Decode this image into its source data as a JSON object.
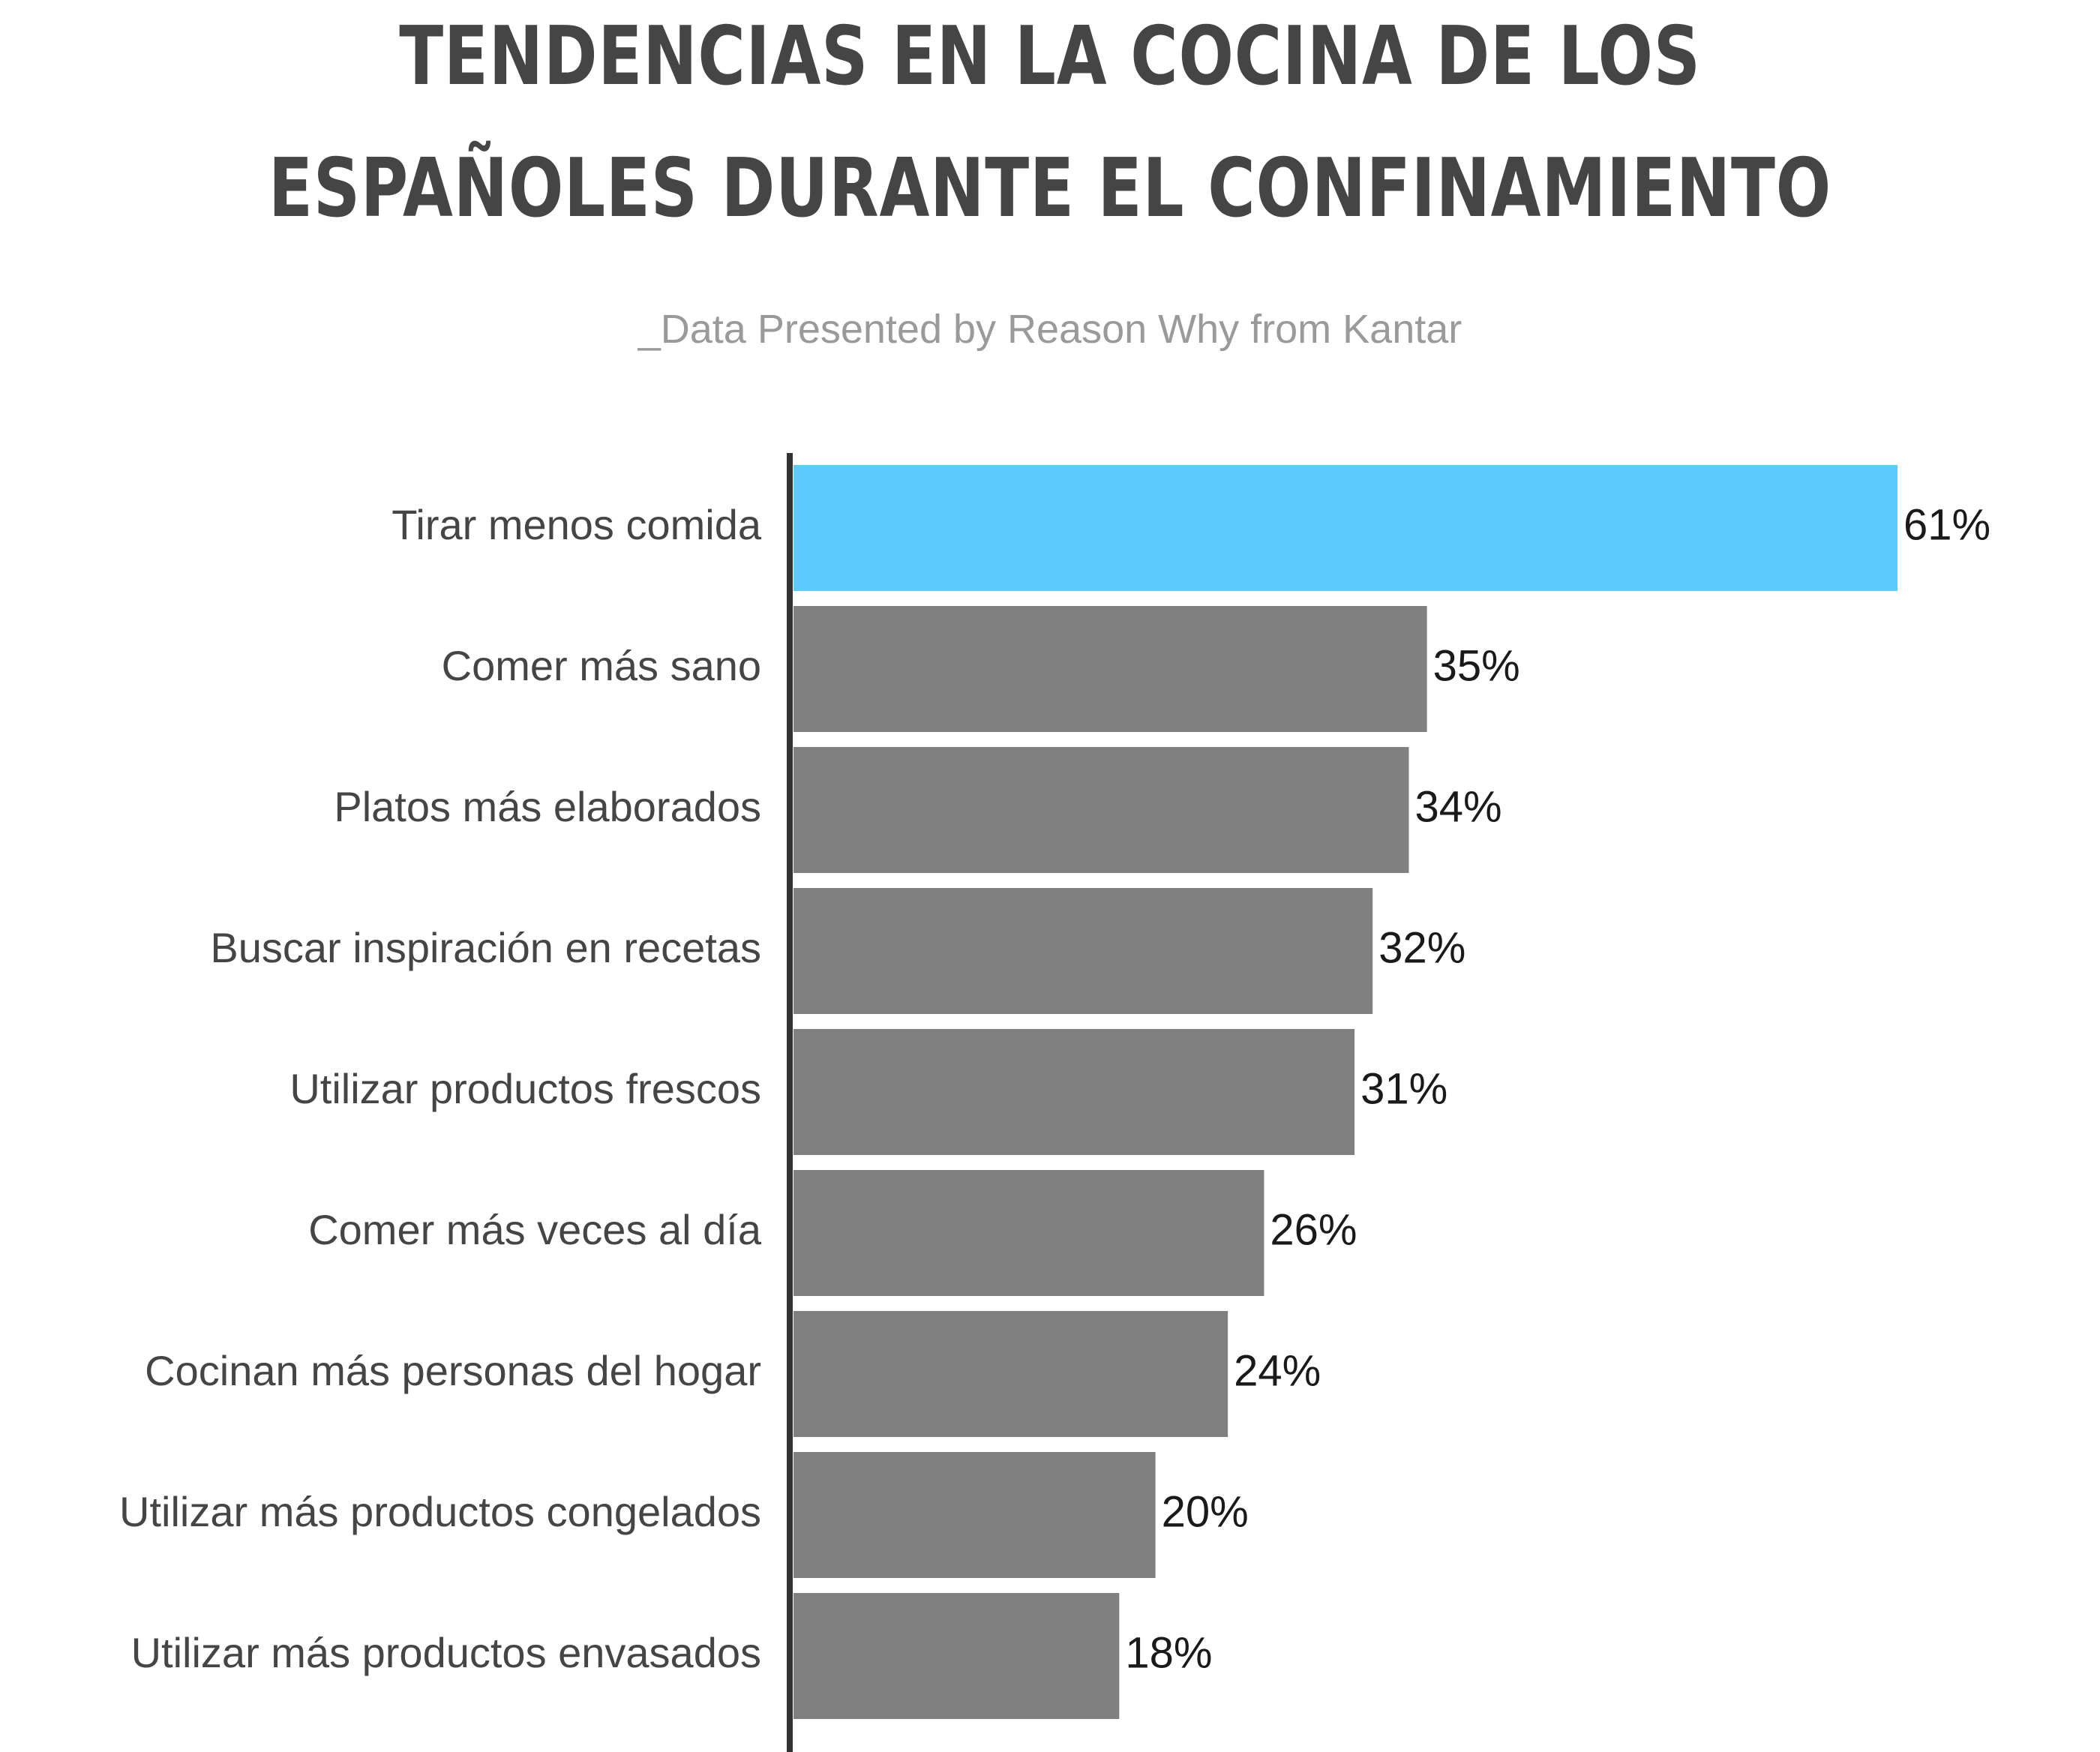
{
  "chart_data": {
    "type": "bar",
    "orientation": "horizontal",
    "title_lines": [
      "TENDENCIAS EN LA COCINA DE LOS",
      "ESPAÑOLES DURANTE EL CONFINAMIENTO"
    ],
    "subtitle": "_Data Presented by Reason Why from Kantar",
    "categories": [
      "Tirar menos comida",
      "Comer más sano",
      "Platos más elaborados",
      "Buscar inspiración en recetas",
      "Utilizar productos frescos",
      "Comer más veces al día",
      "Cocinan más personas del hogar",
      "Utilizar más productos congelados",
      "Utilizar más productos envasados"
    ],
    "values": [
      61,
      35,
      34,
      32,
      31,
      26,
      24,
      20,
      18
    ],
    "value_labels": [
      "61%",
      "35%",
      "34%",
      "32%",
      "31%",
      "26%",
      "24%",
      "20%",
      "18%"
    ],
    "highlight_index": 0,
    "colors": {
      "highlight": "#5bcbfc",
      "bar": "#808080",
      "axis": "#333333",
      "title": "#454545",
      "subtitle": "#9a9a9a"
    },
    "xlim": [
      0,
      61
    ],
    "grid": false,
    "legend": "none"
  }
}
